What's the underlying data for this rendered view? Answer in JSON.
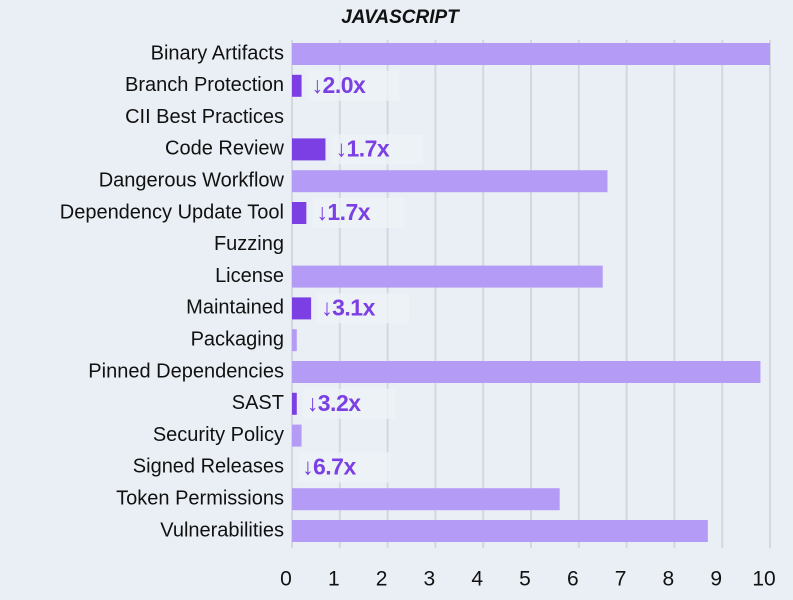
{
  "chart_data": {
    "type": "bar",
    "orientation": "horizontal",
    "title": "JAVASCRIPT",
    "categories": [
      "Binary Artifacts",
      "Branch Protection",
      "CII Best Practices",
      "Code Review",
      "Dangerous Workflow",
      "Dependency Update Tool",
      "Fuzzing",
      "License",
      "Maintained",
      "Packaging",
      "Pinned Dependencies",
      "SAST",
      "Security Policy",
      "Signed Releases",
      "Token Permissions",
      "Vulnerabilities"
    ],
    "values": [
      10.0,
      0.2,
      0,
      0.7,
      6.6,
      0.3,
      0,
      6.5,
      0.4,
      0.1,
      9.8,
      0.1,
      0.2,
      0,
      5.6,
      8.7
    ],
    "colors": [
      "#b49cf6",
      "#7b3fe4",
      "#b49cf6",
      "#7b3fe4",
      "#b49cf6",
      "#7b3fe4",
      "#b49cf6",
      "#b49cf6",
      "#7b3fe4",
      "#b49cf6",
      "#b49cf6",
      "#7b3fe4",
      "#b49cf6",
      "#b49cf6",
      "#b49cf6",
      "#b49cf6"
    ],
    "annotations": [
      {
        "category": "Branch Protection",
        "text": "↓2.0x"
      },
      {
        "category": "Code Review",
        "text": "↓1.7x"
      },
      {
        "category": "Dependency Update Tool",
        "text": "↓1.7x"
      },
      {
        "category": "Maintained",
        "text": "↓3.1x"
      },
      {
        "category": "SAST",
        "text": "↓3.2x"
      },
      {
        "category": "Signed Releases",
        "text": "↓6.7x"
      }
    ],
    "xlim": [
      0,
      10
    ],
    "xticks": [
      0,
      1,
      2,
      3,
      4,
      5,
      6,
      7,
      8,
      9,
      10
    ],
    "grid": true
  }
}
